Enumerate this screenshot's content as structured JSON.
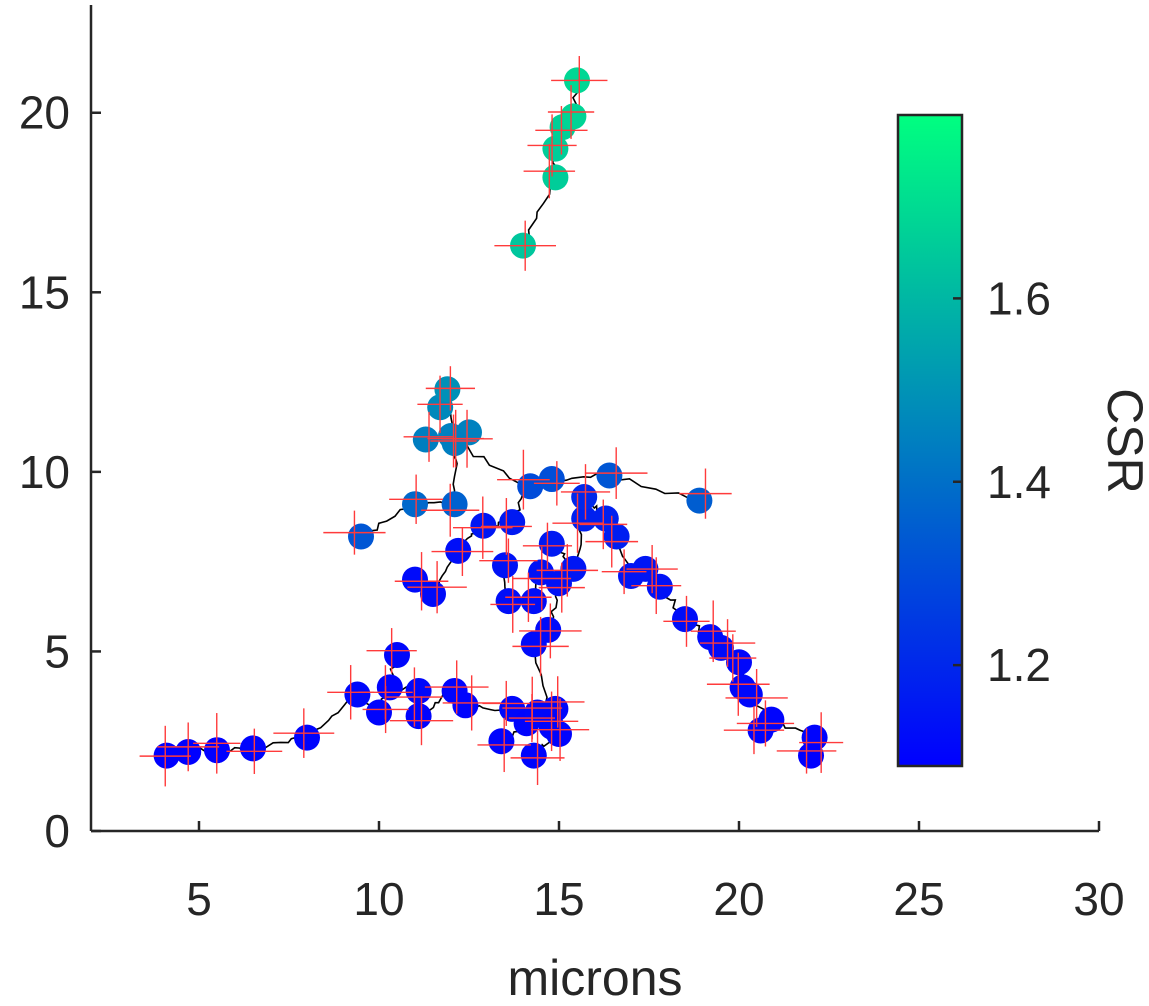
{
  "chart_data": {
    "type": "scatter",
    "title": "",
    "xlabel": "microns",
    "ylabel": "",
    "xlim": [
      2,
      30
    ],
    "ylim": [
      0,
      23
    ],
    "xticks": [
      5,
      10,
      15,
      20,
      25,
      30
    ],
    "yticks": [
      0,
      5,
      10,
      15,
      20
    ],
    "grid": false,
    "colorbar": {
      "label": "CSR",
      "range": [
        1.09,
        1.8
      ],
      "ticks": [
        1.2,
        1.4,
        1.6
      ],
      "colormap": [
        "#0000ff",
        "#00ff80"
      ]
    },
    "series": [
      {
        "points": [
          {
            "x": 4.1,
            "y": 2.1,
            "c": 1.09
          },
          {
            "x": 4.7,
            "y": 2.2,
            "c": 1.09
          },
          {
            "x": 5.5,
            "y": 2.25,
            "c": 1.09
          },
          {
            "x": 6.5,
            "y": 2.3,
            "c": 1.1
          },
          {
            "x": 8.0,
            "y": 2.6,
            "c": 1.1
          },
          {
            "x": 9.4,
            "y": 3.8,
            "c": 1.11
          },
          {
            "x": 10.0,
            "y": 3.3,
            "c": 1.1
          },
          {
            "x": 10.5,
            "y": 4.9,
            "c": 1.11
          },
          {
            "x": 10.3,
            "y": 4.0,
            "c": 1.1
          },
          {
            "x": 11.1,
            "y": 3.9,
            "c": 1.11
          },
          {
            "x": 11.1,
            "y": 3.2,
            "c": 1.1
          },
          {
            "x": 12.1,
            "y": 3.9,
            "c": 1.1
          },
          {
            "x": 12.4,
            "y": 3.5,
            "c": 1.1
          },
          {
            "x": 13.4,
            "y": 2.5,
            "c": 1.1
          },
          {
            "x": 13.7,
            "y": 3.4,
            "c": 1.11
          },
          {
            "x": 14.1,
            "y": 3.0,
            "c": 1.1
          },
          {
            "x": 14.3,
            "y": 2.1,
            "c": 1.1
          },
          {
            "x": 14.4,
            "y": 3.3,
            "c": 1.11
          },
          {
            "x": 14.9,
            "y": 3.4,
            "c": 1.11
          },
          {
            "x": 15.0,
            "y": 2.7,
            "c": 1.1
          },
          {
            "x": 14.8,
            "y": 2.9,
            "c": 1.1
          },
          {
            "x": 11.0,
            "y": 7.0,
            "c": 1.12
          },
          {
            "x": 11.5,
            "y": 6.6,
            "c": 1.12
          },
          {
            "x": 12.2,
            "y": 7.8,
            "c": 1.13
          },
          {
            "x": 12.9,
            "y": 8.5,
            "c": 1.15
          },
          {
            "x": 13.7,
            "y": 8.6,
            "c": 1.16
          },
          {
            "x": 13.5,
            "y": 7.4,
            "c": 1.14
          },
          {
            "x": 13.6,
            "y": 6.4,
            "c": 1.13
          },
          {
            "x": 14.3,
            "y": 6.4,
            "c": 1.13
          },
          {
            "x": 14.3,
            "y": 5.2,
            "c": 1.12
          },
          {
            "x": 14.7,
            "y": 5.6,
            "c": 1.12
          },
          {
            "x": 14.5,
            "y": 7.2,
            "c": 1.14
          },
          {
            "x": 14.8,
            "y": 8.0,
            "c": 1.16
          },
          {
            "x": 15.0,
            "y": 6.9,
            "c": 1.14
          },
          {
            "x": 15.4,
            "y": 7.3,
            "c": 1.15
          },
          {
            "x": 15.7,
            "y": 8.7,
            "c": 1.18
          },
          {
            "x": 15.7,
            "y": 9.3,
            "c": 1.2
          },
          {
            "x": 16.3,
            "y": 8.7,
            "c": 1.18
          },
          {
            "x": 16.6,
            "y": 8.2,
            "c": 1.17
          },
          {
            "x": 17.0,
            "y": 7.1,
            "c": 1.15
          },
          {
            "x": 17.4,
            "y": 7.3,
            "c": 1.15
          },
          {
            "x": 17.8,
            "y": 6.8,
            "c": 1.14
          },
          {
            "x": 18.5,
            "y": 5.9,
            "c": 1.13
          },
          {
            "x": 19.2,
            "y": 5.4,
            "c": 1.12
          },
          {
            "x": 19.5,
            "y": 5.1,
            "c": 1.12
          },
          {
            "x": 20.0,
            "y": 4.7,
            "c": 1.11
          },
          {
            "x": 20.1,
            "y": 4.0,
            "c": 1.11
          },
          {
            "x": 20.3,
            "y": 3.8,
            "c": 1.11
          },
          {
            "x": 20.6,
            "y": 2.8,
            "c": 1.1
          },
          {
            "x": 20.9,
            "y": 3.1,
            "c": 1.1
          },
          {
            "x": 22.1,
            "y": 2.6,
            "c": 1.1
          },
          {
            "x": 22.0,
            "y": 2.1,
            "c": 1.09
          },
          {
            "x": 9.5,
            "y": 8.2,
            "c": 1.33
          },
          {
            "x": 11.0,
            "y": 9.1,
            "c": 1.38
          },
          {
            "x": 12.1,
            "y": 9.1,
            "c": 1.36
          },
          {
            "x": 11.3,
            "y": 10.9,
            "c": 1.44
          },
          {
            "x": 11.7,
            "y": 11.8,
            "c": 1.47
          },
          {
            "x": 11.9,
            "y": 12.3,
            "c": 1.49
          },
          {
            "x": 12.0,
            "y": 11.0,
            "c": 1.45
          },
          {
            "x": 12.5,
            "y": 11.1,
            "c": 1.45
          },
          {
            "x": 12.1,
            "y": 10.8,
            "c": 1.44
          },
          {
            "x": 14.2,
            "y": 9.6,
            "c": 1.3
          },
          {
            "x": 14.8,
            "y": 9.8,
            "c": 1.31
          },
          {
            "x": 16.4,
            "y": 9.9,
            "c": 1.33
          },
          {
            "x": 18.9,
            "y": 9.2,
            "c": 1.35
          },
          {
            "x": 14.0,
            "y": 16.3,
            "c": 1.64
          },
          {
            "x": 14.9,
            "y": 18.2,
            "c": 1.66
          },
          {
            "x": 14.9,
            "y": 19.0,
            "c": 1.66
          },
          {
            "x": 15.1,
            "y": 19.6,
            "c": 1.67
          },
          {
            "x": 15.4,
            "y": 19.9,
            "c": 1.68
          },
          {
            "x": 15.5,
            "y": 20.9,
            "c": 1.69
          }
        ]
      }
    ]
  }
}
